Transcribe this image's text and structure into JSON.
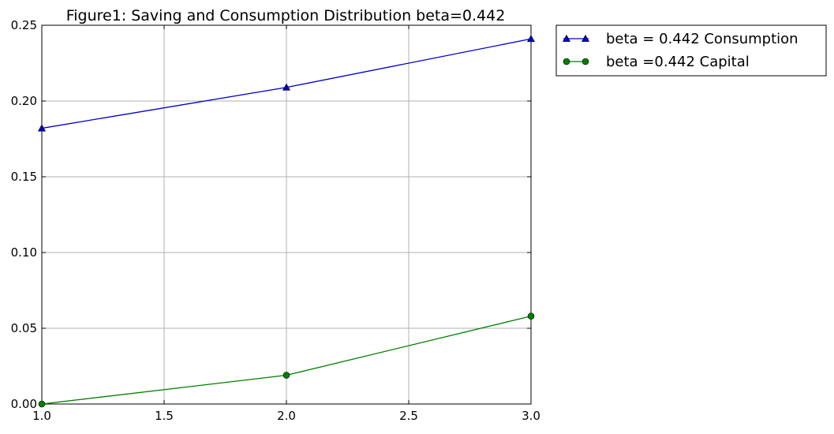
{
  "chart_data": {
    "type": "line",
    "title": "Figure1: Saving and Consumption Distribution beta=0.442",
    "xlabel": "",
    "ylabel": "",
    "xlim": [
      1.0,
      3.0
    ],
    "ylim": [
      0.0,
      0.25
    ],
    "x_ticks": [
      "1.0",
      "1.5",
      "2.0",
      "2.5",
      "3.0"
    ],
    "y_ticks": [
      "0.00",
      "0.05",
      "0.10",
      "0.15",
      "0.20",
      "0.25"
    ],
    "grid": true,
    "legend_position": "outside-top-right",
    "series": [
      {
        "name": "beta = 0.442 Consumption",
        "color": "#0000cc",
        "marker": "triangle",
        "x": [
          1,
          2,
          3
        ],
        "y": [
          0.182,
          0.209,
          0.241
        ]
      },
      {
        "name": "beta =0.442 Capital",
        "color": "#007f00",
        "marker": "circle",
        "x": [
          1,
          2,
          3
        ],
        "y": [
          0.0,
          0.019,
          0.058
        ]
      }
    ]
  }
}
